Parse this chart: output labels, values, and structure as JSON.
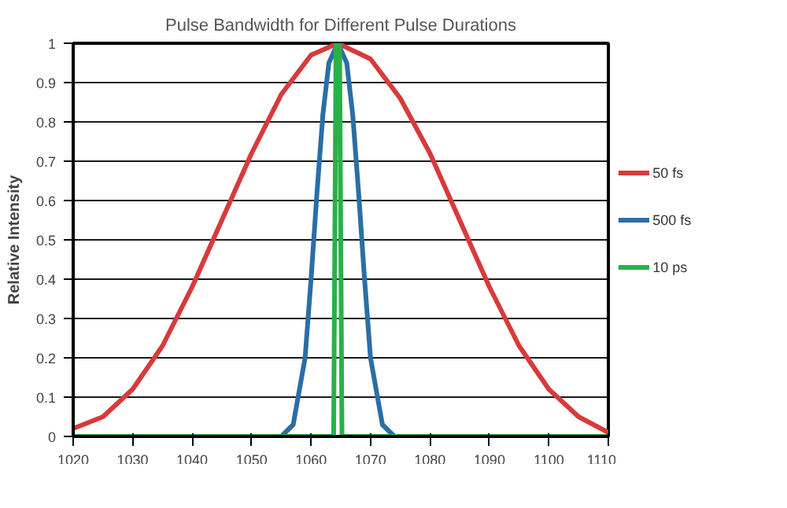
{
  "chart_data": {
    "type": "line",
    "title": "Pulse Bandwidth for Different Pulse Durations",
    "ylabel": "Relative Intensity",
    "xlim": [
      1020,
      1110
    ],
    "xticks": [
      1020,
      1030,
      1040,
      1050,
      1060,
      1070,
      1080,
      1090,
      1100,
      1110
    ],
    "ylim": [
      0,
      1
    ],
    "yticks": [
      0,
      0.1,
      0.2,
      0.3,
      0.4,
      0.5,
      0.6,
      0.7,
      0.8,
      0.9,
      1
    ],
    "grid": "y",
    "legend": "right",
    "marker": "none",
    "line_style": "solid",
    "series": [
      {
        "name": "50 fs",
        "color": "#d83a3a",
        "x": [
          1020,
          1025,
          1030,
          1035,
          1040,
          1045,
          1050,
          1055,
          1060,
          1064.5,
          1070,
          1075,
          1080,
          1085,
          1090,
          1095,
          1100,
          1105,
          1110
        ],
        "values": [
          0.02,
          0.05,
          0.12,
          0.23,
          0.38,
          0.55,
          0.72,
          0.87,
          0.97,
          1,
          0.96,
          0.86,
          0.72,
          0.55,
          0.38,
          0.23,
          0.12,
          0.05,
          0.01
        ]
      },
      {
        "name": "500 fs",
        "color": "#2a6ea6",
        "x": [
          1020,
          1055,
          1057,
          1059,
          1060,
          1061,
          1062,
          1063,
          1064.5,
          1066,
          1067,
          1068,
          1069,
          1070,
          1072,
          1074,
          1110
        ],
        "values": [
          0,
          0,
          0.03,
          0.2,
          0.4,
          0.62,
          0.82,
          0.95,
          1,
          0.95,
          0.82,
          0.62,
          0.4,
          0.2,
          0.03,
          0,
          0
        ]
      },
      {
        "name": "10 ps",
        "color": "#2ab04a",
        "x": [
          1020,
          1063.8,
          1064.2,
          1064.8,
          1065.2,
          1110
        ],
        "values": [
          0,
          0,
          1,
          1,
          0,
          0
        ]
      }
    ]
  }
}
